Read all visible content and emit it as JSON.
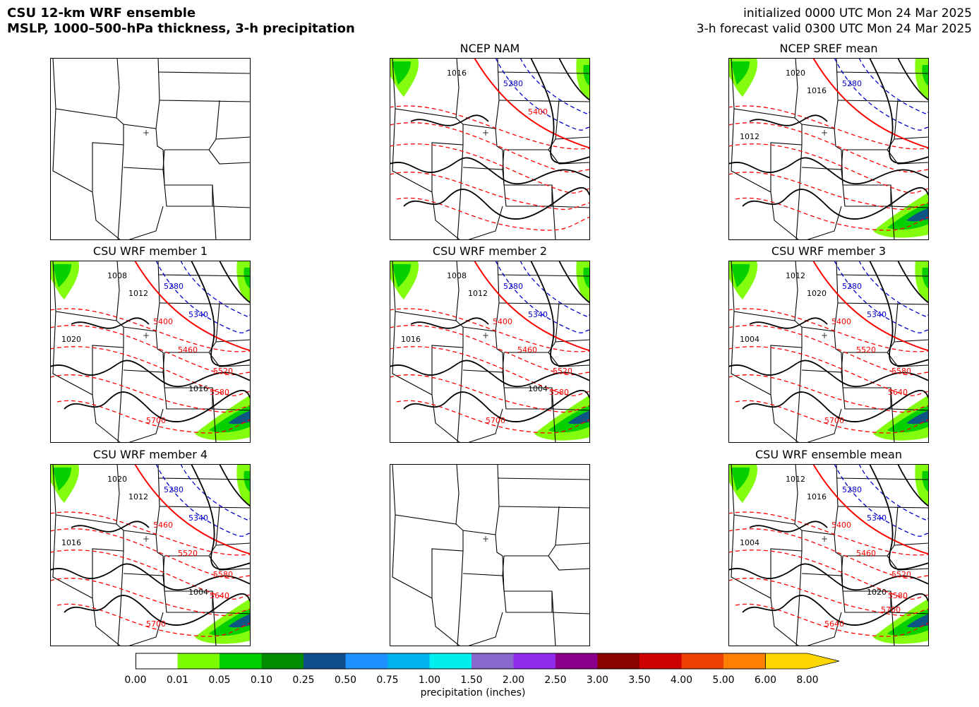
{
  "header": {
    "title_line1": "CSU 12-km WRF ensemble",
    "title_line2": "MSLP, 1000–500-hPa thickness, 3-h precipitation",
    "init_line": "initialized 0000 UTC Mon 24 Mar 2025",
    "valid_line": "3-h forecast valid 0300 UTC Mon 24 Mar 2025"
  },
  "panels": [
    {
      "id": "p0",
      "title": "",
      "empty": true
    },
    {
      "id": "p1",
      "title": "NCEP NAM",
      "empty": false,
      "thickness_labels": [
        "5280",
        "5400"
      ],
      "pressure_labels": [
        "1016"
      ]
    },
    {
      "id": "p2",
      "title": "NCEP SREF mean",
      "empty": false,
      "thickness_labels": [
        "5280"
      ],
      "pressure_labels": [
        "1020",
        "1016",
        "1012"
      ]
    },
    {
      "id": "p3",
      "title": "CSU WRF member 1",
      "empty": false,
      "thickness_labels": [
        "5280",
        "5340",
        "5400",
        "5460",
        "5520",
        "5580",
        "5700"
      ],
      "pressure_labels": [
        "1008",
        "1012",
        "1020",
        "1016"
      ]
    },
    {
      "id": "p4",
      "title": "CSU WRF member 2",
      "empty": false,
      "thickness_labels": [
        "5280",
        "5340",
        "5400",
        "5460",
        "5520",
        "5580",
        "5700"
      ],
      "pressure_labels": [
        "1008",
        "1012",
        "1016",
        "1004"
      ]
    },
    {
      "id": "p5",
      "title": "CSU WRF member 3",
      "empty": false,
      "thickness_labels": [
        "5280",
        "5340",
        "5400",
        "5520",
        "5580",
        "5640",
        "5700"
      ],
      "pressure_labels": [
        "1012",
        "1020",
        "1004"
      ]
    },
    {
      "id": "p6",
      "title": "CSU WRF member 4",
      "empty": false,
      "thickness_labels": [
        "5280",
        "5340",
        "5460",
        "5520",
        "5580",
        "5640",
        "5700"
      ],
      "pressure_labels": [
        "1020",
        "1012",
        "1016",
        "1004"
      ]
    },
    {
      "id": "p7",
      "title": "",
      "empty": true
    },
    {
      "id": "p8",
      "title": "CSU WRF ensemble mean",
      "empty": false,
      "thickness_labels": [
        "5280",
        "5340",
        "5400",
        "5460",
        "5520",
        "5580",
        "5640",
        "5700"
      ],
      "pressure_labels": [
        "1012",
        "1016",
        "1004",
        "1020"
      ]
    }
  ],
  "colorbar": {
    "title": "precipitation (inches)",
    "ticks": [
      "0.00",
      "0.01",
      "0.05",
      "0.10",
      "0.25",
      "0.50",
      "0.75",
      "1.00",
      "1.50",
      "2.00",
      "2.50",
      "3.00",
      "3.50",
      "4.00",
      "5.00",
      "6.00",
      "8.00"
    ],
    "colors": [
      "#ffffff",
      "#7cfc00",
      "#00cd00",
      "#008b00",
      "#104e8b",
      "#1e90ff",
      "#00b2ee",
      "#00eeee",
      "#8968cd",
      "#912cee",
      "#8b008b",
      "#8b0000",
      "#cd0000",
      "#ee4000",
      "#ff7f00",
      "#ffd700"
    ]
  },
  "colors": {
    "thickness_low": "#0000cd",
    "thickness_high": "#ff0000",
    "mslp": "#000000"
  }
}
